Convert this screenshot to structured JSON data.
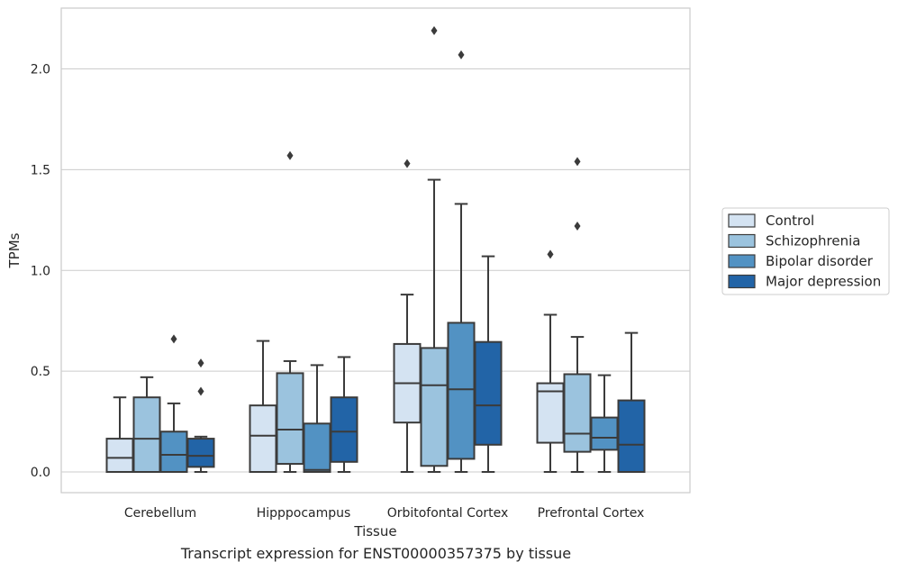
{
  "caption": "Transcript expression for ENST00000357375 by tissue",
  "chart_data": {
    "type": "box",
    "title": "",
    "xlabel": "Tissue",
    "ylabel": "TPMs",
    "ylim": [
      -0.11,
      2.31
    ],
    "yticks": [
      0.0,
      0.5,
      1.0,
      1.5,
      2.0
    ],
    "ytick_labels": [
      "0.0",
      "0.5",
      "1.0",
      "1.5",
      "2.0"
    ],
    "grid": "horizontal",
    "legend_position": "right",
    "categories": [
      "Cerebellum",
      "Hipppocampus",
      "Orbitofontal Cortex",
      "Prefrontal Cortex"
    ],
    "series": [
      {
        "name": "Control",
        "color": "#d4e3f2",
        "boxes": [
          {
            "whislo": 0.0,
            "q1": 0.0,
            "med": 0.07,
            "q3": 0.165,
            "whishi": 0.37,
            "fliers": []
          },
          {
            "whislo": 0.0,
            "q1": 0.0,
            "med": 0.18,
            "q3": 0.33,
            "whishi": 0.65,
            "fliers": []
          },
          {
            "whislo": 0.0,
            "q1": 0.245,
            "med": 0.44,
            "q3": 0.635,
            "whishi": 0.88,
            "fliers": [
              1.53
            ]
          },
          {
            "whislo": 0.0,
            "q1": 0.145,
            "med": 0.4,
            "q3": 0.44,
            "whishi": 0.78,
            "fliers": [
              1.08
            ]
          }
        ]
      },
      {
        "name": "Schizophrenia",
        "color": "#9bc3de",
        "boxes": [
          {
            "whislo": 0.0,
            "q1": 0.0,
            "med": 0.165,
            "q3": 0.37,
            "whishi": 0.47,
            "fliers": []
          },
          {
            "whislo": 0.0,
            "q1": 0.04,
            "med": 0.21,
            "q3": 0.49,
            "whishi": 0.55,
            "fliers": [
              1.57
            ]
          },
          {
            "whislo": 0.0,
            "q1": 0.03,
            "med": 0.43,
            "q3": 0.615,
            "whishi": 1.45,
            "fliers": [
              2.19
            ]
          },
          {
            "whislo": 0.0,
            "q1": 0.1,
            "med": 0.19,
            "q3": 0.485,
            "whishi": 0.67,
            "fliers": [
              1.22,
              1.54
            ]
          }
        ]
      },
      {
        "name": "Bipolar disorder",
        "color": "#5292c3",
        "boxes": [
          {
            "whislo": 0.0,
            "q1": 0.0,
            "med": 0.085,
            "q3": 0.2,
            "whishi": 0.34,
            "fliers": [
              0.66
            ]
          },
          {
            "whislo": 0.0,
            "q1": 0.0,
            "med": 0.01,
            "q3": 0.24,
            "whishi": 0.53,
            "fliers": []
          },
          {
            "whislo": 0.0,
            "q1": 0.065,
            "med": 0.41,
            "q3": 0.74,
            "whishi": 1.33,
            "fliers": [
              2.07
            ]
          },
          {
            "whislo": 0.0,
            "q1": 0.11,
            "med": 0.17,
            "q3": 0.27,
            "whishi": 0.48,
            "fliers": []
          }
        ]
      },
      {
        "name": "Major depression",
        "color": "#2264a7",
        "boxes": [
          {
            "whislo": 0.0,
            "q1": 0.025,
            "med": 0.08,
            "q3": 0.165,
            "whishi": 0.175,
            "fliers": [
              0.4,
              0.54
            ]
          },
          {
            "whislo": 0.0,
            "q1": 0.05,
            "med": 0.2,
            "q3": 0.37,
            "whishi": 0.57,
            "fliers": []
          },
          {
            "whislo": 0.0,
            "q1": 0.135,
            "med": 0.33,
            "q3": 0.645,
            "whishi": 1.07,
            "fliers": []
          },
          {
            "whislo": 0.0,
            "q1": 0.0,
            "med": 0.135,
            "q3": 0.355,
            "whishi": 0.69,
            "fliers": []
          }
        ]
      }
    ]
  }
}
